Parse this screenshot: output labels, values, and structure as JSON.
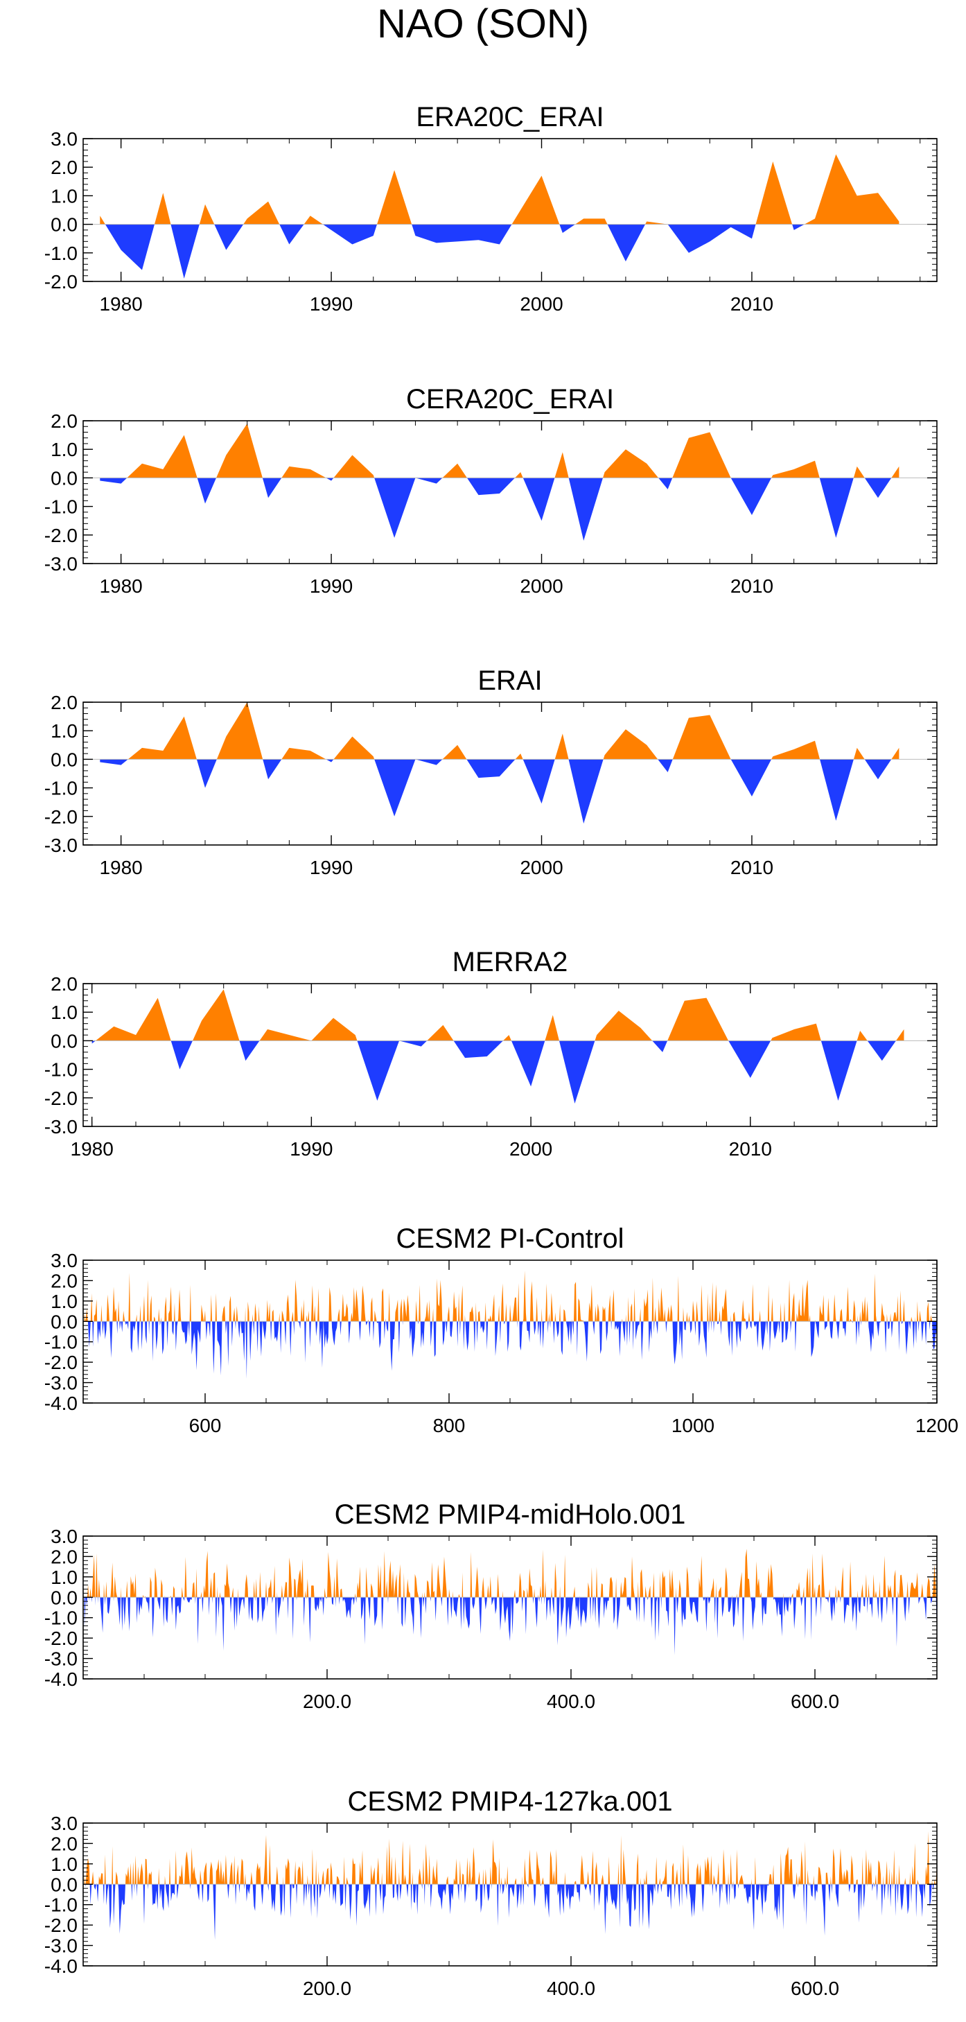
{
  "figure_title": "NAO (SON)",
  "colors": {
    "positive": "#ff8000",
    "negative": "#1e3cff",
    "frame": "#000000",
    "zero_line": "#bbbbbb"
  },
  "chart_data": [
    {
      "type": "area",
      "title": "ERA20C_ERAI",
      "x": [
        1979,
        1980,
        1981,
        1982,
        1983,
        1984,
        1985,
        1986,
        1987,
        1988,
        1989,
        1990,
        1991,
        1992,
        1993,
        1994,
        1995,
        1996,
        1997,
        1998,
        1999,
        2000,
        2001,
        2002,
        2003,
        2004,
        2005,
        2006,
        2007,
        2008,
        2009,
        2010,
        2011,
        2012,
        2013,
        2014,
        2015,
        2016,
        2017
      ],
      "values": [
        0.3,
        -0.9,
        -1.6,
        1.1,
        -1.9,
        0.7,
        -0.9,
        0.2,
        0.8,
        -0.7,
        0.3,
        -0.2,
        -0.7,
        -0.4,
        1.9,
        -0.4,
        -0.65,
        -0.6,
        -0.55,
        -0.7,
        0.5,
        1.7,
        -0.3,
        0.2,
        0.2,
        -1.3,
        0.1,
        0.0,
        -1.0,
        -0.6,
        -0.1,
        -0.5,
        2.2,
        -0.2,
        0.2,
        2.45,
        1.0,
        1.1,
        0.1
      ],
      "xlim": [
        1978.2,
        2018.8
      ],
      "ylim": [
        -2.0,
        3.0
      ],
      "yticks": [
        -2,
        -1,
        0,
        1,
        2,
        3
      ],
      "ytick_labels": [
        "-2.0",
        "-1.0",
        "0.0",
        "1.0",
        "2.0",
        "3.0"
      ],
      "xticks": [
        1980,
        1990,
        2000,
        2010
      ],
      "xtick_labels": [
        "1980",
        "1990",
        "2000",
        "2010"
      ],
      "xminor_step": 2,
      "yminor_step": 0.2
    },
    {
      "type": "area",
      "title": "CERA20C_ERAI",
      "x": [
        1979,
        1980,
        1981,
        1982,
        1983,
        1984,
        1985,
        1986,
        1987,
        1988,
        1989,
        1990,
        1991,
        1992,
        1993,
        1994,
        1995,
        1996,
        1997,
        1998,
        1999,
        2000,
        2001,
        2002,
        2003,
        2004,
        2005,
        2006,
        2007,
        2008,
        2009,
        2010,
        2011,
        2012,
        2013,
        2014,
        2015,
        2016,
        2017
      ],
      "values": [
        -0.1,
        -0.2,
        0.5,
        0.3,
        1.5,
        -0.9,
        0.8,
        1.9,
        -0.7,
        0.4,
        0.3,
        -0.1,
        0.8,
        0.1,
        -2.1,
        0.0,
        -0.2,
        0.5,
        -0.6,
        -0.55,
        0.2,
        -1.5,
        0.9,
        -2.2,
        0.2,
        1.0,
        0.5,
        -0.4,
        1.4,
        1.6,
        0.0,
        -1.3,
        0.1,
        0.3,
        0.6,
        -2.1,
        0.4,
        -0.7,
        0.4
      ],
      "xlim": [
        1978.2,
        2018.8
      ],
      "ylim": [
        -3.0,
        2.0
      ],
      "yticks": [
        -3,
        -2,
        -1,
        0,
        1,
        2
      ],
      "ytick_labels": [
        "-3.0",
        "-2.0",
        "-1.0",
        "0.0",
        "1.0",
        "2.0"
      ],
      "xticks": [
        1980,
        1990,
        2000,
        2010
      ],
      "xtick_labels": [
        "1980",
        "1990",
        "2000",
        "2010"
      ],
      "xminor_step": 2,
      "yminor_step": 0.2
    },
    {
      "type": "area",
      "title": "ERAI",
      "x": [
        1979,
        1980,
        1981,
        1982,
        1983,
        1984,
        1985,
        1986,
        1987,
        1988,
        1989,
        1990,
        1991,
        1992,
        1993,
        1994,
        1995,
        1996,
        1997,
        1998,
        1999,
        2000,
        2001,
        2002,
        2003,
        2004,
        2005,
        2006,
        2007,
        2008,
        2009,
        2010,
        2011,
        2012,
        2013,
        2014,
        2015,
        2016,
        2017
      ],
      "values": [
        -0.1,
        -0.2,
        0.4,
        0.3,
        1.5,
        -1.0,
        0.8,
        2.0,
        -0.7,
        0.4,
        0.3,
        -0.1,
        0.8,
        0.1,
        -2.0,
        0.0,
        -0.2,
        0.5,
        -0.65,
        -0.6,
        0.2,
        -1.55,
        0.9,
        -2.25,
        0.15,
        1.05,
        0.5,
        -0.45,
        1.45,
        1.55,
        0.0,
        -1.3,
        0.1,
        0.35,
        0.65,
        -2.15,
        0.4,
        -0.7,
        0.4
      ],
      "xlim": [
        1978.2,
        2018.8
      ],
      "ylim": [
        -3.0,
        2.0
      ],
      "yticks": [
        -3,
        -2,
        -1,
        0,
        1,
        2
      ],
      "ytick_labels": [
        "-3.0",
        "-2.0",
        "-1.0",
        "0.0",
        "1.0",
        "2.0"
      ],
      "xticks": [
        1980,
        1990,
        2000,
        2010
      ],
      "xtick_labels": [
        "1980",
        "1990",
        "2000",
        "2010"
      ],
      "xminor_step": 2,
      "yminor_step": 0.2
    },
    {
      "type": "area",
      "title": "MERRA2",
      "x": [
        1980,
        1981,
        1982,
        1983,
        1984,
        1985,
        1986,
        1987,
        1988,
        1989,
        1990,
        1991,
        1992,
        1993,
        1994,
        1995,
        1996,
        1997,
        1998,
        1999,
        2000,
        2001,
        2002,
        2003,
        2004,
        2005,
        2006,
        2007,
        2008,
        2009,
        2010,
        2011,
        2012,
        2013,
        2014,
        2015,
        2016,
        2017
      ],
      "values": [
        -0.1,
        0.5,
        0.2,
        1.5,
        -1.0,
        0.7,
        1.8,
        -0.7,
        0.4,
        0.2,
        0.0,
        0.8,
        0.2,
        -2.1,
        0.0,
        -0.2,
        0.55,
        -0.6,
        -0.55,
        0.2,
        -1.6,
        0.9,
        -2.2,
        0.2,
        1.05,
        0.45,
        -0.4,
        1.4,
        1.5,
        0.0,
        -1.3,
        0.1,
        0.4,
        0.6,
        -2.1,
        0.35,
        -0.7,
        0.4
      ],
      "xlim": [
        1979.6,
        2018.5
      ],
      "ylim": [
        -3.0,
        2.0
      ],
      "yticks": [
        -3,
        -2,
        -1,
        0,
        1,
        2
      ],
      "ytick_labels": [
        "-3.0",
        "-2.0",
        "-1.0",
        "0.0",
        "1.0",
        "2.0"
      ],
      "xticks": [
        1980,
        1990,
        2000,
        2010
      ],
      "xtick_labels": [
        "1980",
        "1990",
        "2000",
        "2010"
      ],
      "xminor_step": 2,
      "yminor_step": 0.2
    },
    {
      "type": "area",
      "title": "CESM2 PI-Control",
      "x_start": 501,
      "x_end": 1200,
      "seed": 11,
      "xlim": [
        500,
        1200
      ],
      "ylim": [
        -4.0,
        3.0
      ],
      "yticks": [
        -4,
        -3,
        -2,
        -1,
        0,
        1,
        2,
        3
      ],
      "ytick_labels": [
        "-4.0",
        "-3.0",
        "-2.0",
        "-1.0",
        "0.0",
        "1.0",
        "2.0",
        "3.0"
      ],
      "xticks": [
        600,
        800,
        1000,
        1200
      ],
      "xtick_labels": [
        "600",
        "800",
        "1000",
        "1200"
      ],
      "xminor_step": 50,
      "yminor_step": 0.2
    },
    {
      "type": "area",
      "title": "CESM2 PMIP4-midHolo.001",
      "x_start": 1,
      "x_end": 700,
      "seed": 23,
      "xlim": [
        0,
        700
      ],
      "ylim": [
        -4.0,
        3.0
      ],
      "yticks": [
        -4,
        -3,
        -2,
        -1,
        0,
        1,
        2,
        3
      ],
      "ytick_labels": [
        "-4.0",
        "-3.0",
        "-2.0",
        "-1.0",
        "0.0",
        "1.0",
        "2.0",
        "3.0"
      ],
      "xticks": [
        200,
        400,
        600
      ],
      "xtick_labels": [
        "200.0",
        "400.0",
        "600.0"
      ],
      "xminor_step": 50,
      "yminor_step": 0.2
    },
    {
      "type": "area",
      "title": "CESM2 PMIP4-127ka.001",
      "x_start": 1,
      "x_end": 700,
      "seed": 37,
      "xlim": [
        0,
        700
      ],
      "ylim": [
        -4.0,
        3.0
      ],
      "yticks": [
        -4,
        -3,
        -2,
        -1,
        0,
        1,
        2,
        3
      ],
      "ytick_labels": [
        "-4.0",
        "-3.0",
        "-2.0",
        "-1.0",
        "0.0",
        "1.0",
        "2.0",
        "3.0"
      ],
      "xticks": [
        200,
        400,
        600
      ],
      "xtick_labels": [
        "200.0",
        "400.0",
        "600.0"
      ],
      "xminor_step": 50,
      "yminor_step": 0.2
    }
  ]
}
